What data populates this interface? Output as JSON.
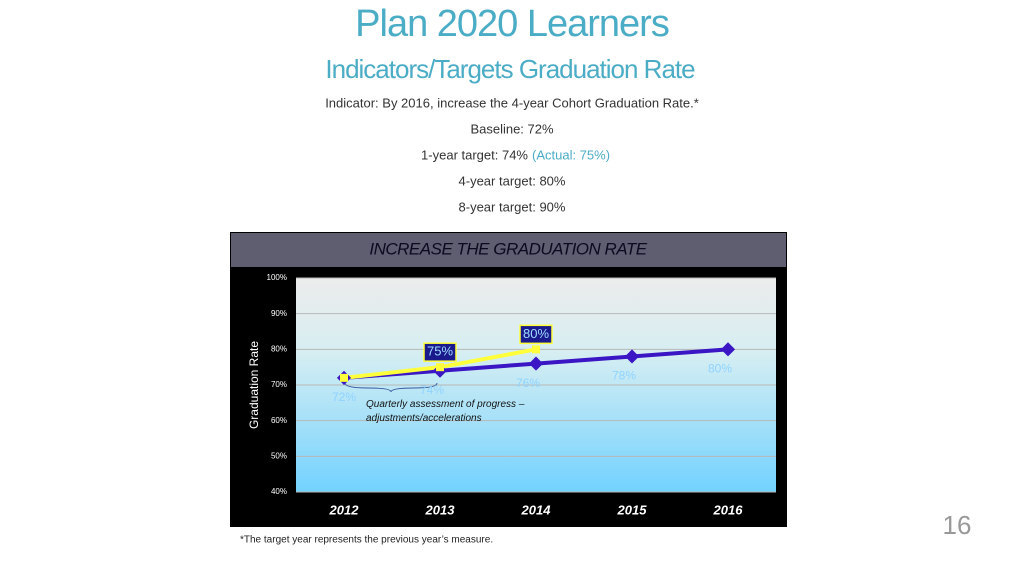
{
  "header": {
    "title": "Plan 2020 Learners",
    "subtitle": "Indicators/Targets Graduation Rate",
    "lines": [
      "Indicator:  By 2016, increase the 4-year Cohort Graduation Rate.*",
      "Baseline:  72%",
      "1-year target:  74%",
      "4-year target:  80%",
      "8-year target:  90%"
    ],
    "actual_note": "(Actual: 75%)"
  },
  "chart_data": {
    "type": "line",
    "title": "INCREASE THE GRADUATION RATE",
    "y_label": "Graduation Rate",
    "categories": [
      "2012",
      "2013",
      "2014",
      "2015",
      "2016"
    ],
    "series": [
      {
        "color": "#3a16c4",
        "values": [
          72,
          74,
          76,
          78,
          80
        ],
        "value_labels": [
          "72%",
          "74%",
          "76%",
          "78%",
          "80%"
        ]
      },
      {
        "color": "#ffff3c",
        "values": [
          72,
          75,
          80,
          null,
          null
        ],
        "value_labels": [
          null,
          "75%",
          "80%",
          null,
          null
        ]
      }
    ],
    "ylim": [
      40,
      100
    ],
    "yticks": [
      {
        "value": 40,
        "label": "40%"
      },
      {
        "value": 50,
        "label": "50%"
      },
      {
        "value": 60,
        "label": "60%"
      },
      {
        "value": 70,
        "label": "70%"
      },
      {
        "value": 80,
        "label": "80%"
      },
      {
        "value": 90,
        "label": "90%"
      },
      {
        "value": 100,
        "label": "100%"
      }
    ],
    "grid": true,
    "annotation": "Quarterly assessment of progress – adjustments/accelerations"
  },
  "footnote": "*The target year represents the previous year’s  measure.",
  "page_number": "16"
}
